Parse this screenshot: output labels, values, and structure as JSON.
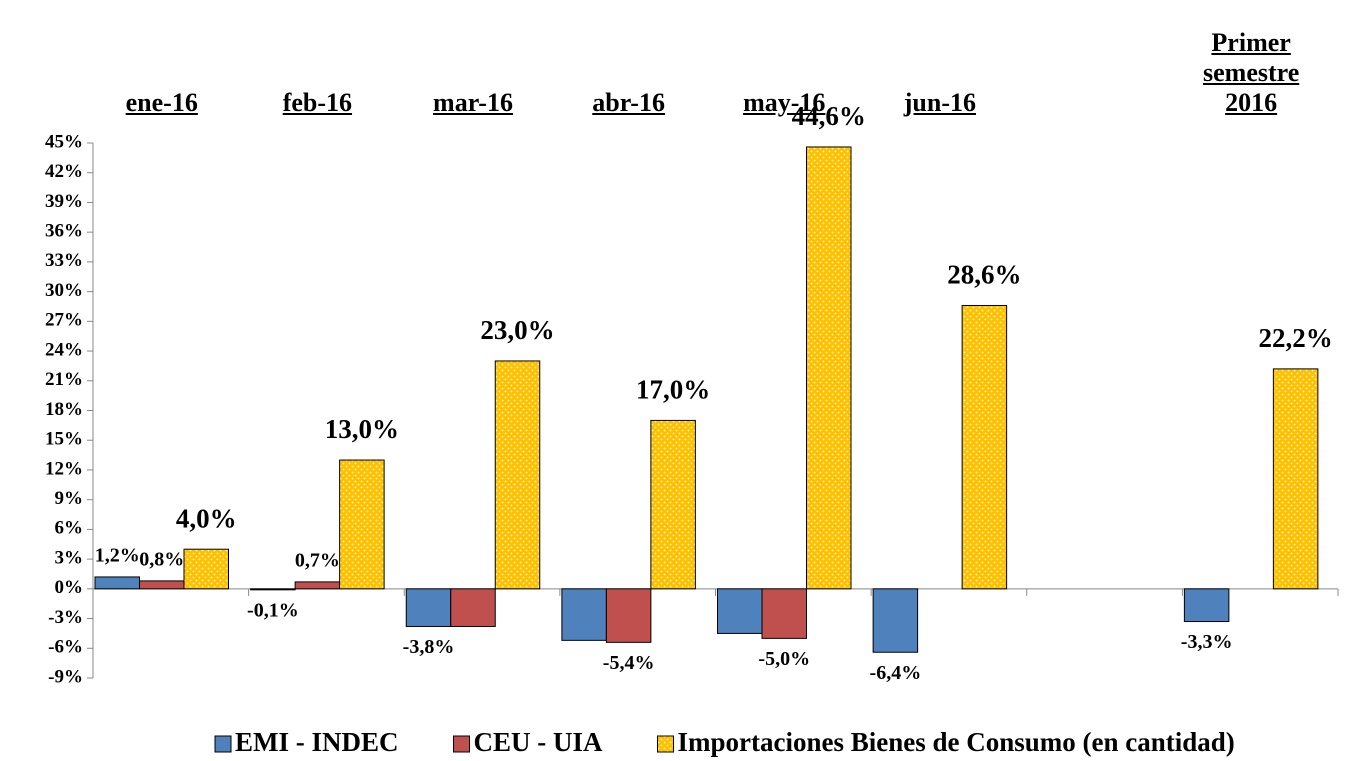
{
  "chart_data": {
    "type": "bar",
    "categories": [
      "ene-16",
      "feb-16",
      "mar-16",
      "abr-16",
      "may-16",
      "jun-16",
      null,
      "Primer semestre 2016"
    ],
    "series": [
      {
        "name": "EMI - INDEC",
        "color": "#4f81bd",
        "values": [
          1.2,
          -0.1,
          -3.8,
          -5.2,
          -4.5,
          -6.4,
          null,
          -3.3
        ],
        "value_labels": [
          "1,2%",
          "-0,1%",
          "-3,8%",
          null,
          null,
          "-6,4%",
          null,
          "-3,3%"
        ]
      },
      {
        "name": "CEU - UIA",
        "color": "#c0504d",
        "values": [
          0.8,
          0.7,
          -3.8,
          -5.4,
          -5.0,
          null,
          null,
          null
        ],
        "value_labels": [
          "0,8%",
          "0,7%",
          null,
          "-5,4%",
          "-5,0%",
          null,
          null,
          null
        ]
      },
      {
        "name": "Importaciones Bienes de Consumo (en cantidad)",
        "color": "#ffc000",
        "values": [
          4.0,
          13.0,
          23.0,
          17.0,
          44.6,
          28.6,
          null,
          22.2
        ],
        "value_labels": [
          "4,0%",
          "13,0%",
          "23,0%",
          "17,0%",
          "44,6%",
          "28,6%",
          null,
          "22,2%"
        ]
      }
    ],
    "ylim": [
      -9,
      45
    ],
    "yticks": [
      {
        "value": -9,
        "label": "-9%"
      },
      {
        "value": -6,
        "label": "-6%"
      },
      {
        "value": -3,
        "label": "-3%"
      },
      {
        "value": 0,
        "label": "0%"
      },
      {
        "value": 3,
        "label": "3%"
      },
      {
        "value": 6,
        "label": "6%"
      },
      {
        "value": 9,
        "label": "9%"
      },
      {
        "value": 12,
        "label": "12%"
      },
      {
        "value": 15,
        "label": "15%"
      },
      {
        "value": 18,
        "label": "18%"
      },
      {
        "value": 21,
        "label": "21%"
      },
      {
        "value": 24,
        "label": "24%"
      },
      {
        "value": 27,
        "label": "27%"
      },
      {
        "value": 30,
        "label": "30%"
      },
      {
        "value": 33,
        "label": "33%"
      },
      {
        "value": 36,
        "label": "36%"
      },
      {
        "value": 39,
        "label": "39%"
      },
      {
        "value": 42,
        "label": "42%"
      },
      {
        "value": 45,
        "label": "45%"
      }
    ],
    "grid": false,
    "legend": "bottom"
  }
}
